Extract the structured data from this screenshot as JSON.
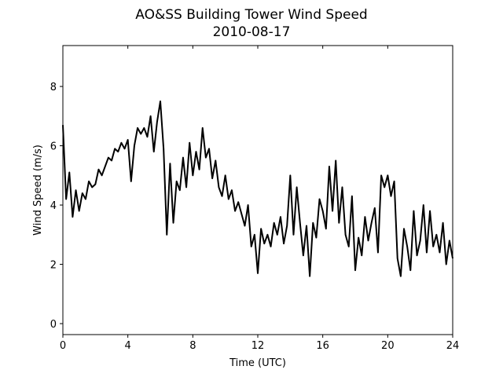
{
  "chart_data": {
    "type": "line",
    "title": "AO&SS Building Tower Wind Speed",
    "subtitle": "2010-08-17",
    "x_label": "Time (UTC)",
    "y_label": "Wind Speed (m/s)",
    "xlim": [
      0,
      24
    ],
    "xticks": [
      0,
      4,
      8,
      12,
      16,
      20,
      24
    ],
    "ylim": [
      -0.37,
      9.38
    ],
    "yticks": [
      0,
      2,
      4,
      6,
      8
    ],
    "series": [
      {
        "color": "#000000",
        "x": [
          0,
          0.2,
          0.4,
          0.6,
          0.8,
          1.0,
          1.2,
          1.4,
          1.6,
          1.8,
          2.0,
          2.2,
          2.4,
          2.6,
          2.8,
          3.0,
          3.2,
          3.4,
          3.6,
          3.8,
          4.0,
          4.2,
          4.4,
          4.6,
          4.8,
          5.0,
          5.2,
          5.4,
          5.6,
          5.8,
          6.0,
          6.2,
          6.4,
          6.6,
          6.8,
          7.0,
          7.2,
          7.4,
          7.6,
          7.8,
          8.0,
          8.2,
          8.4,
          8.6,
          8.8,
          9.0,
          9.2,
          9.4,
          9.6,
          9.8,
          10.0,
          10.2,
          10.4,
          10.6,
          10.8,
          11.0,
          11.2,
          11.4,
          11.6,
          11.8,
          12.0,
          12.2,
          12.4,
          12.6,
          12.8,
          13.0,
          13.2,
          13.4,
          13.6,
          13.8,
          14.0,
          14.2,
          14.4,
          14.6,
          14.8,
          15.0,
          15.2,
          15.4,
          15.6,
          15.8,
          16.0,
          16.2,
          16.4,
          16.6,
          16.8,
          17.0,
          17.2,
          17.4,
          17.6,
          17.8,
          18.0,
          18.2,
          18.4,
          18.6,
          18.8,
          19.0,
          19.2,
          19.4,
          19.6,
          19.8,
          20.0,
          20.2,
          20.4,
          20.6,
          20.8,
          21.0,
          21.2,
          21.4,
          21.6,
          21.8,
          22.0,
          22.2,
          22.4,
          22.6,
          22.8,
          23.0,
          23.2,
          23.4,
          23.6,
          23.8,
          24.0
        ],
        "values": [
          6.7,
          4.2,
          5.1,
          3.6,
          4.5,
          3.8,
          4.4,
          4.2,
          4.8,
          4.6,
          4.7,
          5.2,
          5.0,
          5.3,
          5.6,
          5.5,
          5.9,
          5.8,
          6.1,
          5.9,
          6.2,
          4.8,
          6.0,
          6.6,
          6.4,
          6.6,
          6.3,
          7.0,
          5.8,
          6.8,
          7.5,
          5.9,
          3.0,
          5.4,
          3.4,
          4.8,
          4.5,
          5.6,
          4.6,
          6.1,
          5.0,
          5.8,
          5.2,
          6.6,
          5.6,
          5.9,
          4.9,
          5.5,
          4.6,
          4.3,
          5.0,
          4.2,
          4.5,
          3.8,
          4.1,
          3.7,
          3.3,
          4.0,
          2.6,
          3.0,
          1.7,
          3.2,
          2.7,
          3.0,
          2.6,
          3.4,
          3.0,
          3.6,
          2.7,
          3.3,
          5.0,
          3.0,
          4.6,
          3.4,
          2.3,
          3.3,
          1.6,
          3.4,
          2.9,
          4.2,
          3.8,
          3.2,
          5.3,
          3.8,
          5.5,
          3.4,
          4.6,
          3.0,
          2.6,
          4.3,
          1.8,
          2.9,
          2.3,
          3.6,
          2.8,
          3.4,
          3.9,
          2.4,
          5.0,
          4.6,
          5.0,
          4.3,
          4.8,
          2.2,
          1.6,
          3.2,
          2.6,
          1.8,
          3.8,
          2.3,
          2.8,
          4.0,
          2.4,
          3.8,
          2.6,
          3.0,
          2.4,
          3.4,
          2.0,
          2.8,
          2.2
        ]
      }
    ]
  }
}
